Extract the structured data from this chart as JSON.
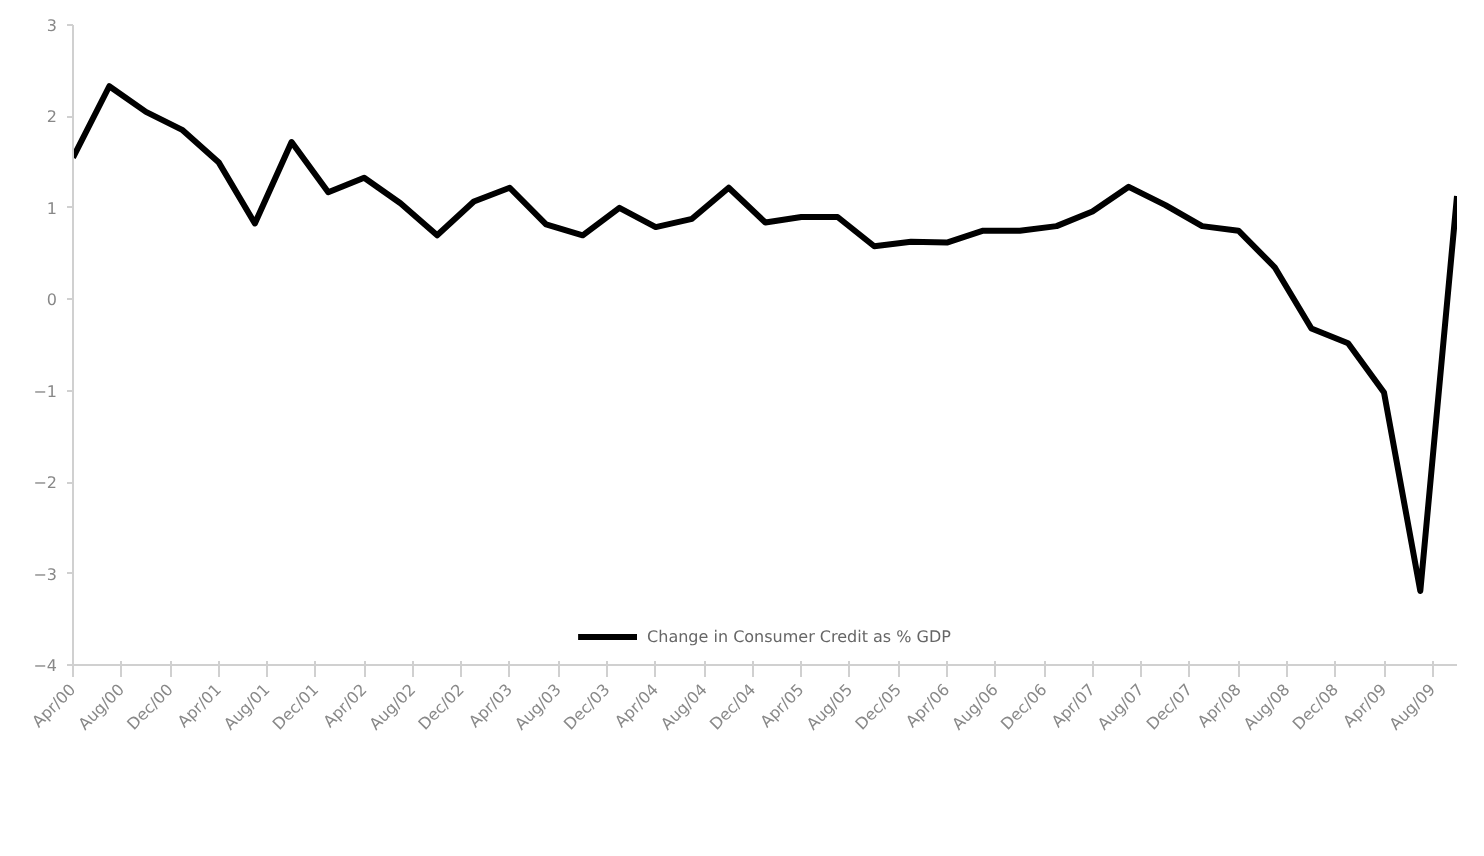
{
  "chart_data": {
    "type": "line",
    "x": [
      "2000-04",
      "2000-07",
      "2000-10",
      "2001-01",
      "2001-04",
      "2001-07",
      "2001-10",
      "2002-01",
      "2002-04",
      "2002-07",
      "2002-10",
      "2003-01",
      "2003-04",
      "2003-07",
      "2003-10",
      "2004-01",
      "2004-04",
      "2004-07",
      "2004-10",
      "2005-01",
      "2005-04",
      "2005-07",
      "2005-10",
      "2006-01",
      "2006-04",
      "2006-07",
      "2006-10",
      "2007-01",
      "2007-04",
      "2007-07",
      "2007-10",
      "2008-01",
      "2008-04",
      "2008-07",
      "2008-10",
      "2009-01",
      "2009-04",
      "2009-07",
      "2009-10"
    ],
    "series": [
      {
        "name": "Change in Consumer Credit as % GDP",
        "color": "#000000",
        "values": [
          1.55,
          2.33,
          2.05,
          1.85,
          1.5,
          0.83,
          1.72,
          1.17,
          1.33,
          1.05,
          0.7,
          1.07,
          1.22,
          0.82,
          0.7,
          1.0,
          0.79,
          0.88,
          1.22,
          0.84,
          0.9,
          0.9,
          0.58,
          0.63,
          0.62,
          0.75,
          0.75,
          0.8,
          0.96,
          1.23,
          1.03,
          0.8,
          0.75,
          0.35,
          -0.32,
          -0.48,
          -1.02,
          -3.19,
          1.13
        ]
      }
    ],
    "xlim": [
      "2000-04",
      "2009-10"
    ],
    "xticks": [
      {
        "value": "2000-04",
        "label": "Apr/00"
      },
      {
        "value": "2000-08",
        "label": "Aug/00"
      },
      {
        "value": "2000-12",
        "label": "Dec/00"
      },
      {
        "value": "2001-04",
        "label": "Apr/01"
      },
      {
        "value": "2001-08",
        "label": "Aug/01"
      },
      {
        "value": "2001-12",
        "label": "Dec/01"
      },
      {
        "value": "2002-04",
        "label": "Apr/02"
      },
      {
        "value": "2002-08",
        "label": "Aug/02"
      },
      {
        "value": "2002-12",
        "label": "Dec/02"
      },
      {
        "value": "2003-04",
        "label": "Apr/03"
      },
      {
        "value": "2003-08",
        "label": "Aug/03"
      },
      {
        "value": "2003-12",
        "label": "Dec/03"
      },
      {
        "value": "2004-04",
        "label": "Apr/04"
      },
      {
        "value": "2004-08",
        "label": "Aug/04"
      },
      {
        "value": "2004-12",
        "label": "Dec/04"
      },
      {
        "value": "2005-04",
        "label": "Apr/05"
      },
      {
        "value": "2005-08",
        "label": "Aug/05"
      },
      {
        "value": "2005-12",
        "label": "Dec/05"
      },
      {
        "value": "2006-04",
        "label": "Apr/06"
      },
      {
        "value": "2006-08",
        "label": "Aug/06"
      },
      {
        "value": "2006-12",
        "label": "Dec/06"
      },
      {
        "value": "2007-04",
        "label": "Apr/07"
      },
      {
        "value": "2007-08",
        "label": "Aug/07"
      },
      {
        "value": "2007-12",
        "label": "Dec/07"
      },
      {
        "value": "2008-04",
        "label": "Apr/08"
      },
      {
        "value": "2008-08",
        "label": "Aug/08"
      },
      {
        "value": "2008-12",
        "label": "Dec/08"
      },
      {
        "value": "2009-04",
        "label": "Apr/09"
      },
      {
        "value": "2009-08",
        "label": "Aug/09"
      }
    ],
    "ylim": [
      -4,
      3
    ],
    "yticks": [
      -4,
      -3,
      -2,
      -1,
      0,
      1,
      2,
      3
    ],
    "grid": false,
    "legend": "bottom",
    "marker": "none",
    "line_style": "solid"
  }
}
